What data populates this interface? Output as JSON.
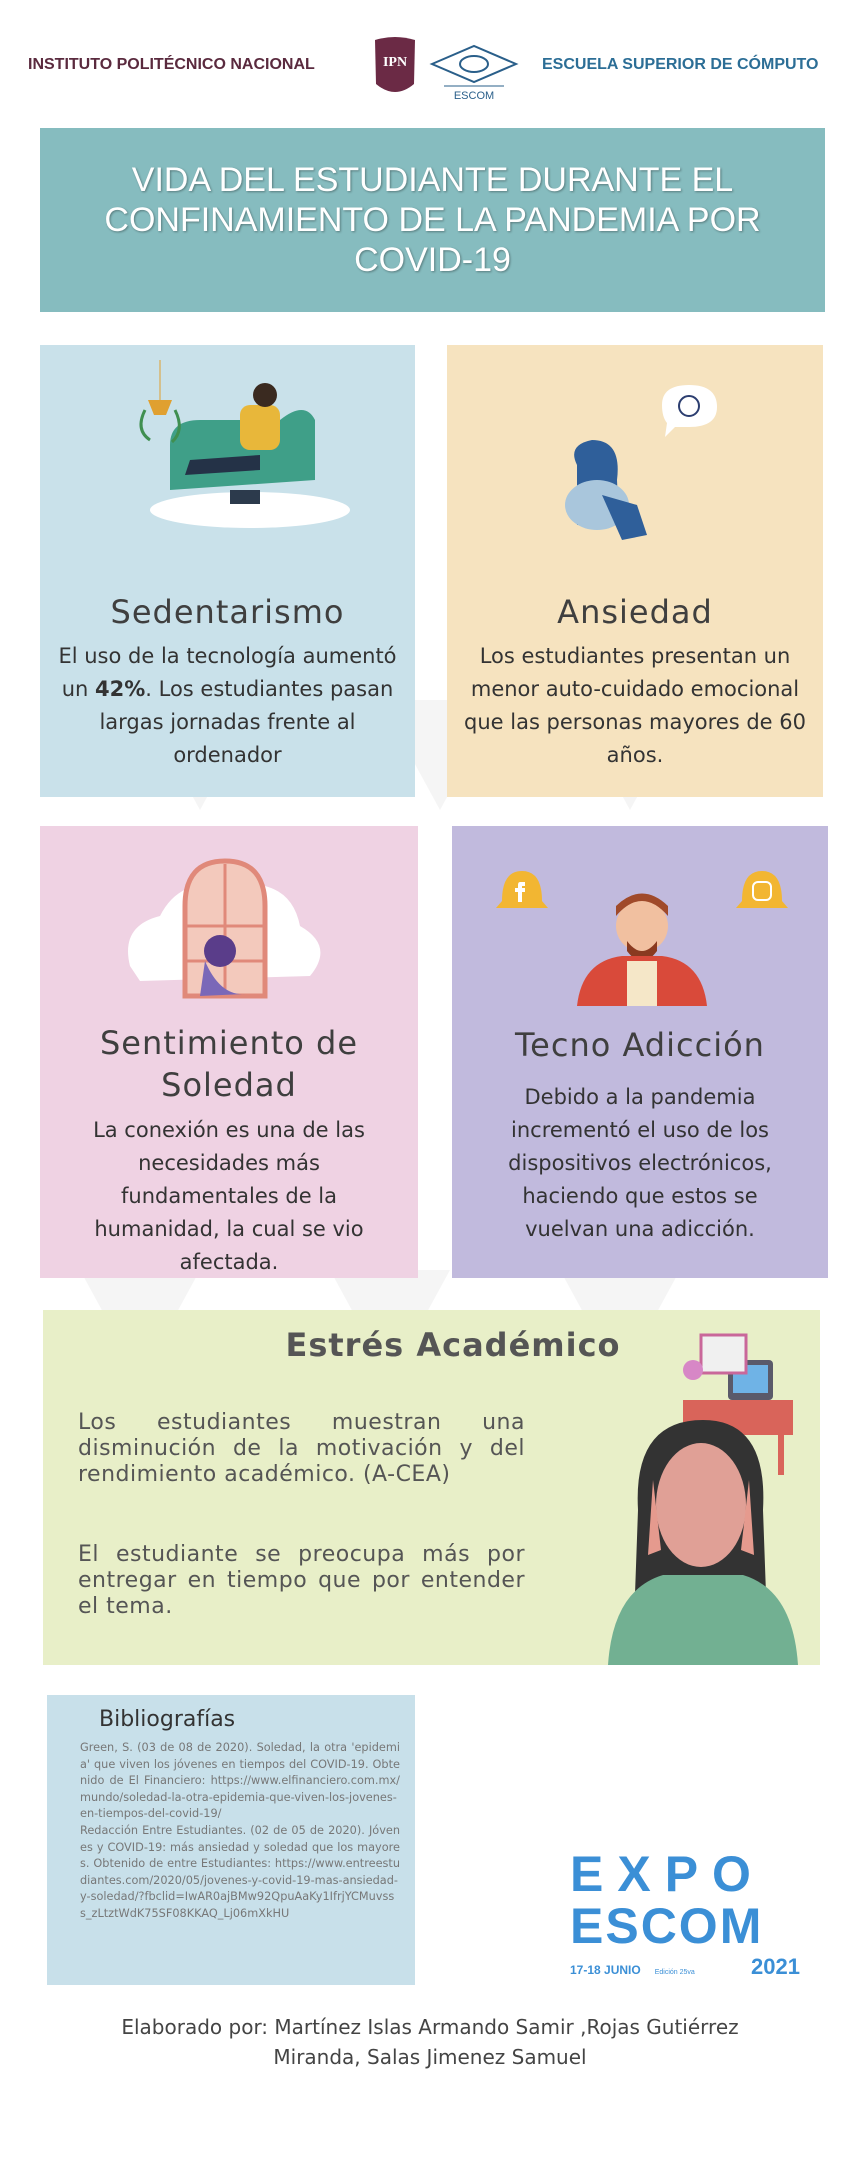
{
  "header": {
    "left_text": "INSTITUTO POLITÉCNICO NACIONAL",
    "ipn_logo": "IPN",
    "escom_logo": "ESCOM",
    "right_text": "ESCUELA SUPERIOR DE CÓMPUTO"
  },
  "title": "VIDA DEL ESTUDIANTE DURANTE EL CONFINAMIENTO DE LA PANDEMIA POR COVID-19",
  "cards": [
    {
      "title": "Sedentarismo",
      "text_before": "El uso de la tecnología aumentó un ",
      "highlight": "42%",
      "text_after": ". Los estudiantes pasan largas jornadas frente al ordenador",
      "color": "#c9e1ea"
    },
    {
      "title": "Ansiedad",
      "text": "Los estudiantes presentan un menor auto-cuidado emocional que las personas mayores de 60 años.",
      "color": "#f6e3bf"
    },
    {
      "title": "Sentimiento de Soledad",
      "text": "La conexión es una de las necesidades más fundamentales de la humanidad, la cual se vio afectada.",
      "color": "#efd2e3"
    },
    {
      "title": "Tecno Adicción",
      "text": "Debido a la pandemia incrementó el uso de los dispositivos electrónicos, haciendo que estos se vuelvan una adicción.",
      "color": "#c1badd"
    }
  ],
  "stress": {
    "title": "Estrés Académico",
    "paragraph1": "Los estudiantes muestran una disminución de la motivación y del rendimiento académico. (A-CEA)",
    "paragraph2": "El estudiante se preocupa más por entregar en tiempo que por entender el tema.",
    "color": "#e8efc8"
  },
  "bibliography": {
    "title": "Bibliografías",
    "entries": [
      "Green, S. (03 de 08 de 2020). Soledad, la otra 'epidemia' que viven los jóvenes en tiempos del COVID-19. Obtenido de El Financiero: https://www.elfinanciero.com.mx/mundo/soledad-la-otra-epidemia-que-viven-los-jovenes-en-tiempos-del-covid-19/",
      "Redacción Entre Estudiantes. (02 de 05 de 2020). Jóvenes y COVID-19: más ansiedad y soledad que los mayores. Obtenido de entre Estudiantes: https://www.entreestudiantes.com/2020/05/jovenes-y-covid-19-mas-ansiedad-y-soledad/?fbclid=IwAR0ajBMw92QpuAaKy1IfrjYCMuvsss_zLtztWdK75SF08KKAQ_Lj06mXkHU"
    ]
  },
  "expo_logo": {
    "line1": "EXPO",
    "line2": "ESCOM",
    "dates": "17-18 JUNIO",
    "edition": "Edición 25va",
    "year": "2021",
    "color": "#3b8fd6"
  },
  "footer": "Elaborado por: Martínez Islas Armando Samir ,Rojas Gutiérrez Miranda, Salas Jimenez Samuel"
}
